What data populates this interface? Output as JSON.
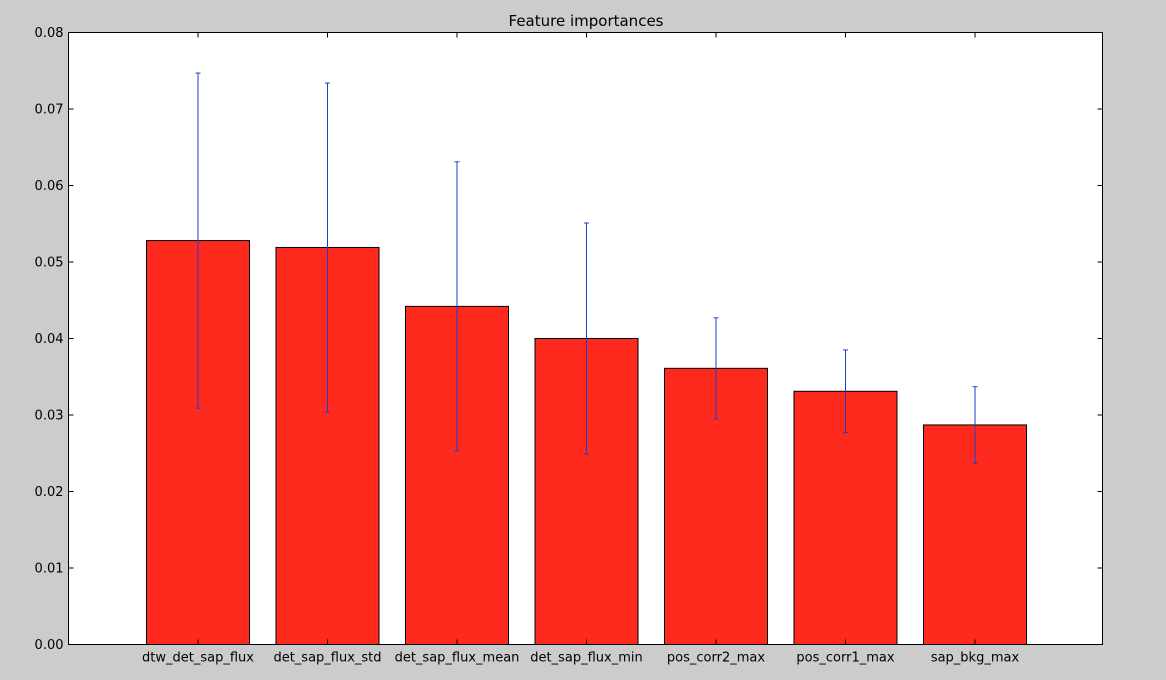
{
  "chart_data": {
    "type": "bar",
    "title": "Feature importances",
    "xlabel": "",
    "ylabel": "",
    "ylim": [
      0,
      0.08
    ],
    "yticks": [
      "0.00",
      "0.01",
      "0.02",
      "0.03",
      "0.04",
      "0.05",
      "0.06",
      "0.07",
      "0.08"
    ],
    "categories": [
      "dtw_det_sap_flux",
      "det_sap_flux_std",
      "det_sap_flux_mean",
      "det_sap_flux_min",
      "pos_corr2_max",
      "pos_corr1_max",
      "sap_bkg_max"
    ],
    "values": [
      0.0528,
      0.0519,
      0.0442,
      0.04,
      0.0361,
      0.0331,
      0.0287
    ],
    "errors": [
      0.0219,
      0.0215,
      0.0189,
      0.0151,
      0.0066,
      0.0054,
      0.005
    ],
    "grid": false,
    "legend": null,
    "colors": {
      "bar": "#ff2a1e",
      "bar_edge": "#000000",
      "error": "#1f3fcf",
      "axes_bg": "#ffffff",
      "figure_bg": "#cccccc"
    }
  }
}
